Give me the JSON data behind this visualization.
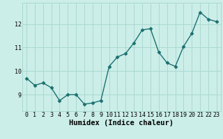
{
  "x": [
    0,
    1,
    2,
    3,
    4,
    5,
    6,
    7,
    8,
    9,
    10,
    11,
    12,
    13,
    14,
    15,
    16,
    17,
    18,
    19,
    20,
    21,
    22,
    23
  ],
  "y": [
    9.7,
    9.4,
    9.5,
    9.3,
    8.75,
    9.0,
    9.0,
    8.6,
    8.65,
    8.75,
    10.2,
    10.6,
    10.75,
    11.2,
    11.75,
    11.8,
    10.8,
    10.35,
    10.2,
    11.05,
    11.6,
    12.5,
    12.2,
    12.1
  ],
  "line_color": "#1a7070",
  "marker": "D",
  "marker_size": 2.5,
  "bg_color": "#cceee8",
  "grid_color": "#aad8d2",
  "xlabel": "Humidex (Indice chaleur)",
  "xlabel_fontsize": 7.5,
  "ylim": [
    8.3,
    12.9
  ],
  "xlim": [
    -0.5,
    23.5
  ],
  "yticks": [
    9,
    10,
    11,
    12
  ],
  "xticks": [
    0,
    1,
    2,
    3,
    4,
    5,
    6,
    7,
    8,
    9,
    10,
    11,
    12,
    13,
    14,
    15,
    16,
    17,
    18,
    19,
    20,
    21,
    22,
    23
  ],
  "tick_fontsize": 6.0
}
